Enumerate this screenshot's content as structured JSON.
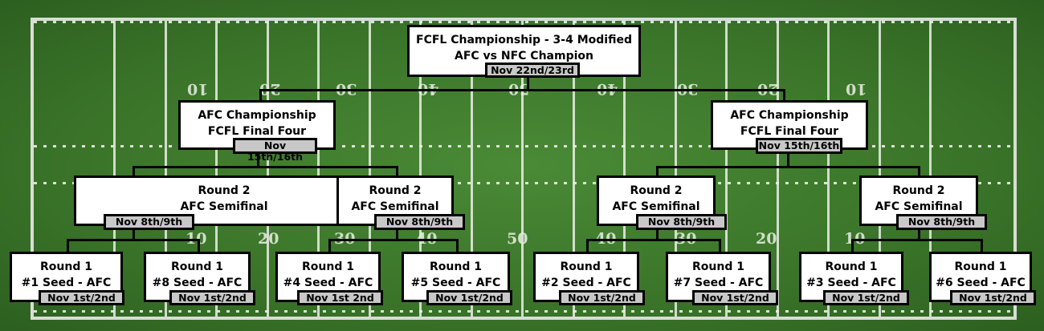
{
  "colors": {
    "field": "#3c7a2c",
    "line": "#e8ece4",
    "box": "#ffffff",
    "tag": "#c8c8c8",
    "connector": "#000000"
  },
  "field_numbers": {
    "top": [
      "10",
      "20",
      "30",
      "40",
      "50",
      "40",
      "30",
      "20",
      "10"
    ],
    "bottom": [
      "10",
      "20",
      "30",
      "40",
      "50",
      "40",
      "30",
      "20",
      "10"
    ]
  },
  "final": {
    "line1": "FCFL Championship - 3-4 Modified",
    "line2": "AFC vs NFC Champion",
    "date": "Nov 22nd/23rd"
  },
  "conference": [
    {
      "line1": "AFC Championship",
      "line2": "FCFL Final Four",
      "date": "Nov 15th/16th"
    },
    {
      "line1": "AFC Championship",
      "line2": "FCFL Final Four",
      "date": "Nov 15th/16th"
    }
  ],
  "round2": [
    {
      "line1": "Round 2",
      "line2": "AFC Semifinal",
      "date": "Nov 8th/9th"
    },
    {
      "line1": "Round 2",
      "line2": "AFC Semifinal",
      "date": "Nov 8th/9th"
    },
    {
      "line1": "Round 2",
      "line2": "AFC Semifinal",
      "date": "Nov 8th/9th"
    },
    {
      "line1": "Round 2",
      "line2": "AFC Semifinal",
      "date": "Nov 8th/9th"
    }
  ],
  "round1": [
    {
      "line1": "Round 1",
      "line2": "#1 Seed - AFC",
      "date": "Nov 1st/2nd"
    },
    {
      "line1": "Round 1",
      "line2": "#8 Seed - AFC",
      "date": "Nov 1st/2nd"
    },
    {
      "line1": "Round 1",
      "line2": "#4 Seed - AFC",
      "date": "Nov 1st 2nd"
    },
    {
      "line1": "Round 1",
      "line2": "#5 Seed - AFC",
      "date": "Nov 1st/2nd"
    },
    {
      "line1": "Round 1",
      "line2": "#2 Seed - AFC",
      "date": "Nov 1st/2nd"
    },
    {
      "line1": "Round 1",
      "line2": "#7 Seed - AFC",
      "date": "Nov 1st/2nd"
    },
    {
      "line1": "Round 1",
      "line2": "#3 Seed - AFC",
      "date": "Nov 1st/2nd"
    },
    {
      "line1": "Round 1",
      "line2": "#6 Seed - AFC",
      "date": "Nov 1st/2nd"
    }
  ]
}
